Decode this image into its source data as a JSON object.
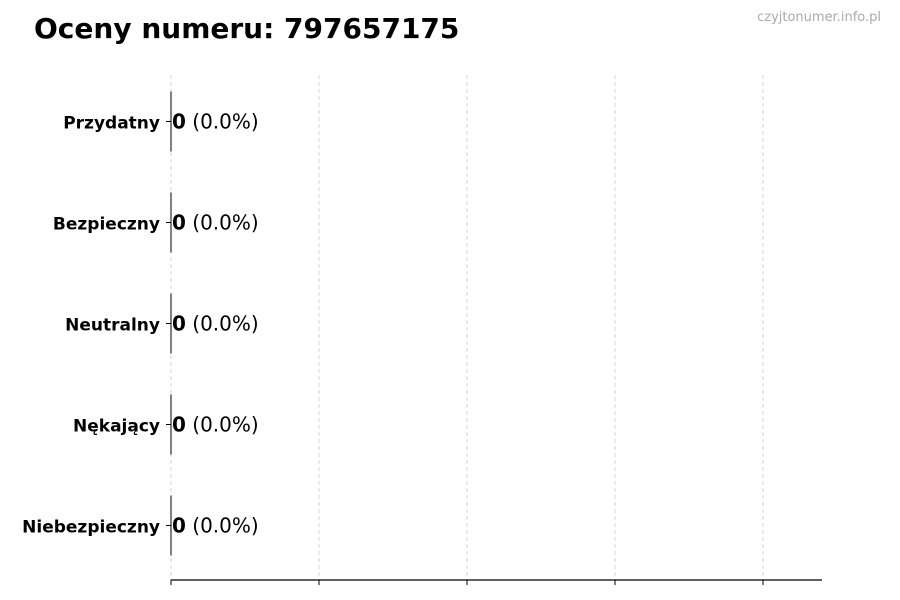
{
  "title": "Oceny numeru: 797657175",
  "watermark": "czyjtonumer.info.pl",
  "chart_data": {
    "type": "bar",
    "orientation": "horizontal",
    "categories": [
      "Przydatny",
      "Bezpieczny",
      "Neutralny",
      "Nękający",
      "Niebezpieczny"
    ],
    "values": [
      0,
      0,
      0,
      0,
      0
    ],
    "data_labels": [
      {
        "count": "0",
        "percent": "(0.0%)"
      },
      {
        "count": "0",
        "percent": "(0.0%)"
      },
      {
        "count": "0",
        "percent": "(0.0%)"
      },
      {
        "count": "0",
        "percent": "(0.0%)"
      },
      {
        "count": "0",
        "percent": "(0.0%)"
      }
    ],
    "xlim": [
      0,
      4.4
    ],
    "xticks": [
      0,
      1,
      2,
      3,
      4
    ],
    "xtick_labels_shown": false,
    "grid": "x-dashed",
    "colors": {
      "bar_edge": "#000000",
      "grid": "#cccccc",
      "text": "#000000",
      "watermark": "#aaaaaa"
    }
  }
}
